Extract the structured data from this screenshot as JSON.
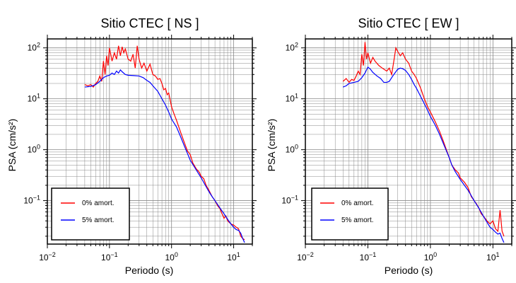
{
  "chart_data": [
    {
      "type": "line",
      "title": "Sitio CTEC [ NS ]",
      "xlabel": "Periodo (s)",
      "ylabel": "PSA (cm/s²)",
      "xscale": "log",
      "yscale": "log",
      "xlim": [
        0.01,
        20
      ],
      "ylim": [
        0.014,
        150
      ],
      "grid": true,
      "legend_position": "bottom-left",
      "xticks": [
        {
          "base": "10",
          "exp": "−2"
        },
        {
          "base": "10",
          "exp": "−1"
        },
        {
          "base": "10",
          "exp": "0"
        },
        {
          "base": "10",
          "exp": "1"
        }
      ],
      "yticks": [
        {
          "base": "10",
          "exp": "−1"
        },
        {
          "base": "10",
          "exp": "0"
        },
        {
          "base": "10",
          "exp": "1"
        },
        {
          "base": "10",
          "exp": "2"
        }
      ],
      "series": [
        {
          "name": "0% amort.",
          "color": "#ff0000",
          "points": [
            [
              0.04,
              19
            ],
            [
              0.045,
              18
            ],
            [
              0.05,
              19
            ],
            [
              0.055,
              17
            ],
            [
              0.06,
              20
            ],
            [
              0.065,
              22
            ],
            [
              0.07,
              28
            ],
            [
              0.075,
              22
            ],
            [
              0.08,
              55
            ],
            [
              0.085,
              30
            ],
            [
              0.09,
              70
            ],
            [
              0.095,
              45
            ],
            [
              0.1,
              100
            ],
            [
              0.11,
              55
            ],
            [
              0.12,
              80
            ],
            [
              0.13,
              60
            ],
            [
              0.14,
              110
            ],
            [
              0.15,
              70
            ],
            [
              0.16,
              105
            ],
            [
              0.17,
              80
            ],
            [
              0.18,
              95
            ],
            [
              0.2,
              60
            ],
            [
              0.22,
              55
            ],
            [
              0.24,
              75
            ],
            [
              0.26,
              40
            ],
            [
              0.28,
              110
            ],
            [
              0.3,
              60
            ],
            [
              0.33,
              40
            ],
            [
              0.36,
              50
            ],
            [
              0.4,
              35
            ],
            [
              0.45,
              48
            ],
            [
              0.5,
              30
            ],
            [
              0.55,
              28
            ],
            [
              0.6,
              24
            ],
            [
              0.65,
              25
            ],
            [
              0.7,
              20
            ],
            [
              0.75,
              15
            ],
            [
              0.8,
              16
            ],
            [
              0.85,
              12
            ],
            [
              0.9,
              13
            ],
            [
              1,
              7
            ],
            [
              1.1,
              5
            ],
            [
              1.2,
              3.8
            ],
            [
              1.4,
              2.2
            ],
            [
              1.6,
              1.4
            ],
            [
              1.8,
              0.95
            ],
            [
              2,
              0.8
            ],
            [
              2.2,
              0.55
            ],
            [
              2.5,
              0.42
            ],
            [
              2.8,
              0.36
            ],
            [
              3,
              0.3
            ],
            [
              3.3,
              0.27
            ],
            [
              3.6,
              0.2
            ],
            [
              4,
              0.16
            ],
            [
              4.5,
              0.12
            ],
            [
              5,
              0.1
            ],
            [
              5.5,
              0.08
            ],
            [
              6,
              0.07
            ],
            [
              6.5,
              0.055
            ],
            [
              7,
              0.045
            ],
            [
              7.5,
              0.05
            ],
            [
              8,
              0.04
            ],
            [
              9,
              0.035
            ],
            [
              10,
              0.033
            ],
            [
              11,
              0.03
            ],
            [
              12,
              0.028
            ],
            [
              13,
              0.02
            ],
            [
              14,
              0.018
            ],
            [
              15,
              0.017
            ]
          ]
        },
        {
          "name": "5% amort.",
          "color": "#0000ff",
          "points": [
            [
              0.04,
              17
            ],
            [
              0.05,
              17.5
            ],
            [
              0.06,
              19
            ],
            [
              0.07,
              22
            ],
            [
              0.08,
              26
            ],
            [
              0.09,
              28
            ],
            [
              0.1,
              29
            ],
            [
              0.11,
              32
            ],
            [
              0.12,
              30
            ],
            [
              0.13,
              35
            ],
            [
              0.14,
              32
            ],
            [
              0.15,
              37
            ],
            [
              0.16,
              34
            ],
            [
              0.18,
              30
            ],
            [
              0.2,
              29
            ],
            [
              0.25,
              28.5
            ],
            [
              0.3,
              28
            ],
            [
              0.35,
              26
            ],
            [
              0.4,
              23
            ],
            [
              0.45,
              21
            ],
            [
              0.5,
              18
            ],
            [
              0.6,
              14
            ],
            [
              0.7,
              10
            ],
            [
              0.8,
              7.5
            ],
            [
              0.9,
              5.5
            ],
            [
              1,
              4
            ],
            [
              1.2,
              2.8
            ],
            [
              1.4,
              1.8
            ],
            [
              1.6,
              1.2
            ],
            [
              1.8,
              0.85
            ],
            [
              2,
              0.62
            ],
            [
              2.5,
              0.4
            ],
            [
              3,
              0.28
            ],
            [
              3.5,
              0.2
            ],
            [
              4,
              0.15
            ],
            [
              4.5,
              0.12
            ],
            [
              5,
              0.1
            ],
            [
              6,
              0.072
            ],
            [
              7,
              0.055
            ],
            [
              8,
              0.043
            ],
            [
              9,
              0.035
            ],
            [
              10,
              0.03
            ],
            [
              11,
              0.027
            ],
            [
              12,
              0.026
            ],
            [
              13,
              0.023
            ],
            [
              14,
              0.018
            ],
            [
              15,
              0.015
            ]
          ]
        }
      ]
    },
    {
      "type": "line",
      "title": "Sitio CTEC [ EW ]",
      "xlabel": "Periodo (s)",
      "ylabel": "PSA (cm/s²)",
      "xscale": "log",
      "yscale": "log",
      "xlim": [
        0.01,
        20
      ],
      "ylim": [
        0.014,
        150
      ],
      "grid": true,
      "legend_position": "bottom-left",
      "xticks": [
        {
          "base": "10",
          "exp": "−2"
        },
        {
          "base": "10",
          "exp": "−1"
        },
        {
          "base": "10",
          "exp": "0"
        },
        {
          "base": "10",
          "exp": "1"
        }
      ],
      "yticks": [
        {
          "base": "10",
          "exp": "−1"
        },
        {
          "base": "10",
          "exp": "0"
        },
        {
          "base": "10",
          "exp": "1"
        },
        {
          "base": "10",
          "exp": "2"
        }
      ],
      "series": [
        {
          "name": "0% amort.",
          "color": "#ff0000",
          "points": [
            [
              0.04,
              22
            ],
            [
              0.045,
              25
            ],
            [
              0.05,
              21
            ],
            [
              0.055,
              24
            ],
            [
              0.06,
              23
            ],
            [
              0.065,
              28
            ],
            [
              0.07,
              35
            ],
            [
              0.075,
              30
            ],
            [
              0.08,
              75
            ],
            [
              0.085,
              45
            ],
            [
              0.09,
              130
            ],
            [
              0.095,
              60
            ],
            [
              0.1,
              80
            ],
            [
              0.11,
              50
            ],
            [
              0.12,
              65
            ],
            [
              0.13,
              55
            ],
            [
              0.15,
              45
            ],
            [
              0.17,
              40
            ],
            [
              0.2,
              35
            ],
            [
              0.22,
              40
            ],
            [
              0.24,
              30
            ],
            [
              0.26,
              55
            ],
            [
              0.28,
              100
            ],
            [
              0.3,
              85
            ],
            [
              0.33,
              70
            ],
            [
              0.36,
              80
            ],
            [
              0.4,
              60
            ],
            [
              0.45,
              50
            ],
            [
              0.5,
              35
            ],
            [
              0.55,
              30
            ],
            [
              0.6,
              25
            ],
            [
              0.7,
              16
            ],
            [
              0.8,
              10
            ],
            [
              0.9,
              7
            ],
            [
              1,
              5.5
            ],
            [
              1.2,
              3.5
            ],
            [
              1.4,
              2.3
            ],
            [
              1.6,
              1.5
            ],
            [
              1.8,
              1
            ],
            [
              2,
              0.7
            ],
            [
              2.2,
              0.5
            ],
            [
              2.5,
              0.4
            ],
            [
              2.8,
              0.35
            ],
            [
              3,
              0.28
            ],
            [
              3.5,
              0.23
            ],
            [
              4,
              0.18
            ],
            [
              4.5,
              0.12
            ],
            [
              5,
              0.1
            ],
            [
              5.5,
              0.085
            ],
            [
              6,
              0.07
            ],
            [
              6.5,
              0.055
            ],
            [
              7,
              0.05
            ],
            [
              7.5,
              0.045
            ],
            [
              8,
              0.04
            ],
            [
              9,
              0.035
            ],
            [
              10,
              0.04
            ],
            [
              11,
              0.028
            ],
            [
              12,
              0.025
            ],
            [
              13,
              0.065
            ],
            [
              14,
              0.025
            ],
            [
              15,
              0.02
            ]
          ]
        },
        {
          "name": "5% amort.",
          "color": "#0000ff",
          "points": [
            [
              0.04,
              17
            ],
            [
              0.045,
              18
            ],
            [
              0.05,
              20
            ],
            [
              0.06,
              21
            ],
            [
              0.07,
              22
            ],
            [
              0.08,
              26
            ],
            [
              0.09,
              32
            ],
            [
              0.1,
              42
            ],
            [
              0.11,
              38
            ],
            [
              0.12,
              33
            ],
            [
              0.14,
              28
            ],
            [
              0.16,
              25
            ],
            [
              0.18,
              21
            ],
            [
              0.2,
              21
            ],
            [
              0.22,
              22
            ],
            [
              0.25,
              28
            ],
            [
              0.28,
              34
            ],
            [
              0.3,
              38
            ],
            [
              0.33,
              40
            ],
            [
              0.36,
              39
            ],
            [
              0.4,
              36
            ],
            [
              0.45,
              30
            ],
            [
              0.5,
              24
            ],
            [
              0.55,
              19
            ],
            [
              0.6,
              16
            ],
            [
              0.7,
              11
            ],
            [
              0.8,
              8
            ],
            [
              0.9,
              6
            ],
            [
              1,
              4.5
            ],
            [
              1.2,
              3
            ],
            [
              1.4,
              2
            ],
            [
              1.6,
              1.35
            ],
            [
              1.8,
              0.95
            ],
            [
              2,
              0.7
            ],
            [
              2.2,
              0.5
            ],
            [
              2.5,
              0.37
            ],
            [
              3,
              0.26
            ],
            [
              3.5,
              0.2
            ],
            [
              4,
              0.16
            ],
            [
              5,
              0.1
            ],
            [
              6,
              0.07
            ],
            [
              7,
              0.05
            ],
            [
              8,
              0.038
            ],
            [
              9,
              0.03
            ],
            [
              10,
              0.027
            ],
            [
              11,
              0.024
            ],
            [
              12,
              0.022
            ],
            [
              13,
              0.023
            ],
            [
              14,
              0.018
            ],
            [
              15,
              0.015
            ]
          ]
        }
      ]
    }
  ]
}
